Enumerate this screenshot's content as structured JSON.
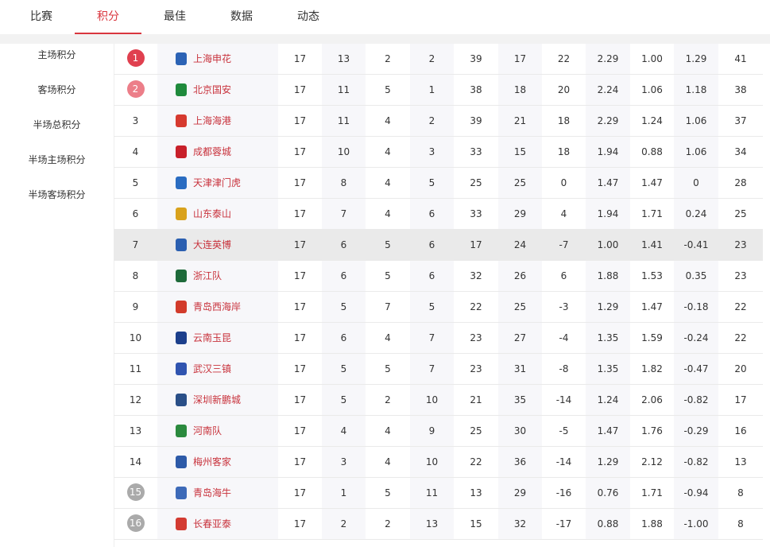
{
  "tabs": [
    "比赛",
    "积分",
    "最佳",
    "数据",
    "动态"
  ],
  "sidebar": [
    "主场积分",
    "客场积分",
    "半场总积分",
    "半场主场积分",
    "半场客场积分"
  ],
  "table": {
    "rows": [
      [
        "1",
        "上海申花",
        "17",
        "13",
        "2",
        "2",
        "39",
        "17",
        "22",
        "2.29",
        "1.00",
        "1.29",
        "41"
      ],
      [
        "2",
        "北京国安",
        "17",
        "11",
        "5",
        "1",
        "38",
        "18",
        "20",
        "2.24",
        "1.06",
        "1.18",
        "38"
      ],
      [
        "3",
        "上海海港",
        "17",
        "11",
        "4",
        "2",
        "39",
        "21",
        "18",
        "2.29",
        "1.24",
        "1.06",
        "37"
      ],
      [
        "4",
        "成都蓉城",
        "17",
        "10",
        "4",
        "3",
        "33",
        "15",
        "18",
        "1.94",
        "0.88",
        "1.06",
        "34"
      ],
      [
        "5",
        "天津津门虎",
        "17",
        "8",
        "4",
        "5",
        "25",
        "25",
        "0",
        "1.47",
        "1.47",
        "0",
        "28"
      ],
      [
        "6",
        "山东泰山",
        "17",
        "7",
        "4",
        "6",
        "33",
        "29",
        "4",
        "1.94",
        "1.71",
        "0.24",
        "25"
      ],
      [
        "7",
        "大连英博",
        "17",
        "6",
        "5",
        "6",
        "17",
        "24",
        "-7",
        "1.00",
        "1.41",
        "-0.41",
        "23"
      ],
      [
        "8",
        "浙江队",
        "17",
        "6",
        "5",
        "6",
        "32",
        "26",
        "6",
        "1.88",
        "1.53",
        "0.35",
        "23"
      ],
      [
        "9",
        "青岛西海岸",
        "17",
        "5",
        "7",
        "5",
        "22",
        "25",
        "-3",
        "1.29",
        "1.47",
        "-0.18",
        "22"
      ],
      [
        "10",
        "云南玉昆",
        "17",
        "6",
        "4",
        "7",
        "23",
        "27",
        "-4",
        "1.35",
        "1.59",
        "-0.24",
        "22"
      ],
      [
        "11",
        "武汉三镇",
        "17",
        "5",
        "5",
        "7",
        "23",
        "31",
        "-8",
        "1.35",
        "1.82",
        "-0.47",
        "20"
      ],
      [
        "12",
        "深圳新鹏城",
        "17",
        "5",
        "2",
        "10",
        "21",
        "35",
        "-14",
        "1.24",
        "2.06",
        "-0.82",
        "17"
      ],
      [
        "13",
        "河南队",
        "17",
        "4",
        "4",
        "9",
        "25",
        "30",
        "-5",
        "1.47",
        "1.76",
        "-0.29",
        "16"
      ],
      [
        "14",
        "梅州客家",
        "17",
        "3",
        "4",
        "10",
        "22",
        "36",
        "-14",
        "1.29",
        "2.12",
        "-0.82",
        "13"
      ],
      [
        "15",
        "青岛海牛",
        "17",
        "1",
        "5",
        "11",
        "13",
        "29",
        "-16",
        "0.76",
        "1.71",
        "-0.94",
        "8"
      ],
      [
        "16",
        "长春亚泰",
        "17",
        "2",
        "2",
        "13",
        "15",
        "32",
        "-17",
        "0.88",
        "1.88",
        "-1.00",
        "8"
      ]
    ]
  }
}
